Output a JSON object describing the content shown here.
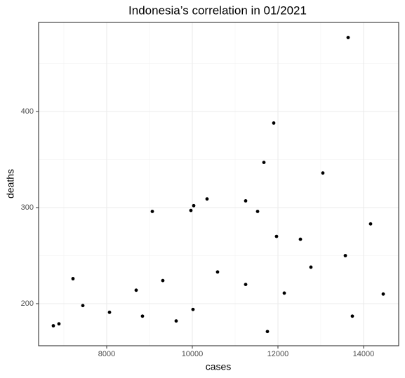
{
  "chart_data": {
    "type": "scatter",
    "title": "Indonesia’s correlation in 01/2021",
    "x_label": "cases",
    "y_label": "deaths",
    "x": [
      6754,
      6885,
      7213,
      7443,
      8066,
      8689,
      8836,
      9066,
      9311,
      9623,
      9967,
      10033,
      10016,
      10344,
      10590,
      11246,
      11246,
      11525,
      11672,
      11754,
      11902,
      11967,
      12148,
      12525,
      12770,
      13049,
      13574,
      13639,
      13738,
      14164,
      14459
    ],
    "values": [
      177,
      179,
      226,
      198,
      191,
      214,
      187,
      296,
      224,
      182,
      297,
      302,
      194,
      309,
      233,
      307,
      220,
      296,
      347,
      171,
      388,
      270,
      211,
      267,
      238,
      336,
      250,
      477,
      187,
      283,
      210
    ],
    "color": "#000000",
    "xlim": [
      6410,
      14820
    ],
    "xticks": [
      8000,
      10000,
      12000,
      14000
    ],
    "x_minor_ticks": [
      7000,
      9000,
      11000,
      13000
    ],
    "ylim": [
      156.2,
      492.7
    ],
    "yticks": [
      200,
      300,
      400
    ],
    "y_minor_ticks": [
      250,
      350,
      450
    ],
    "grid": true
  }
}
